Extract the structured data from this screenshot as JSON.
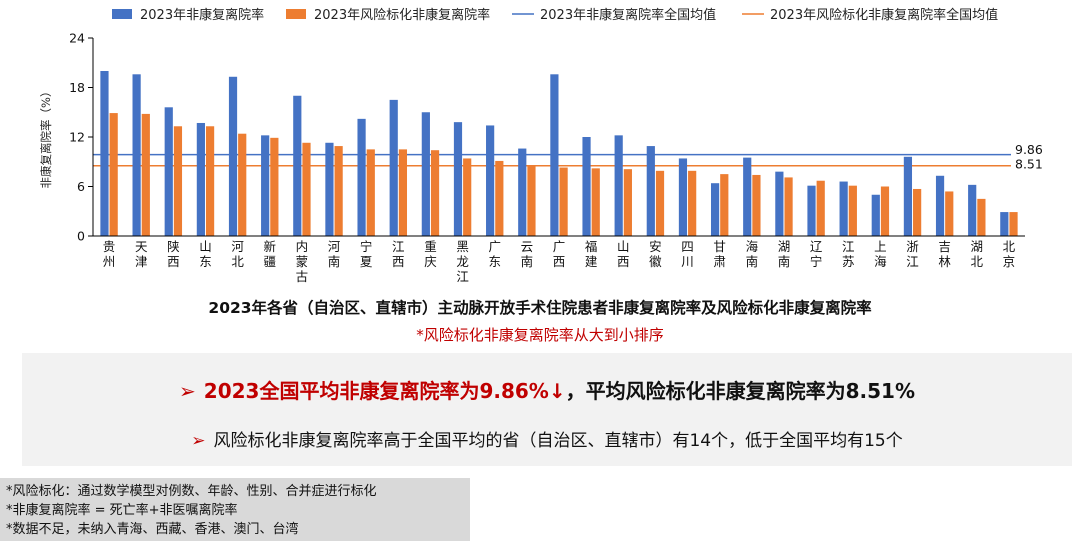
{
  "chart_data": {
    "type": "bar",
    "title": "2023年各省（自治区、直辖市）主动脉开放手术住院患者非康复离院率及风险标化非康复离院率",
    "note": "*风险标化非康复离院率从大到小排序",
    "ylabel": "非康复离院率（%）",
    "ylim": [
      0,
      24
    ],
    "yticks": [
      0,
      6,
      12,
      18,
      24
    ],
    "categories": [
      "贵州",
      "天津",
      "陕西",
      "山东",
      "河北",
      "新疆",
      "内蒙古",
      "河南",
      "宁夏",
      "江西",
      "重庆",
      "黑龙江",
      "广东",
      "云南",
      "广西",
      "福建",
      "山西",
      "安徽",
      "四川",
      "甘肃",
      "海南",
      "湖南",
      "辽宁",
      "江苏",
      "上海",
      "浙江",
      "吉林",
      "湖北",
      "北京"
    ],
    "series": [
      {
        "name": "2023年非康复离院率",
        "color": "#4472c4",
        "values": [
          20.0,
          19.6,
          15.6,
          13.7,
          19.3,
          12.2,
          17.0,
          11.3,
          14.2,
          16.5,
          15.0,
          13.8,
          13.4,
          10.6,
          19.6,
          12.0,
          12.2,
          10.9,
          9.4,
          6.4,
          9.5,
          7.8,
          6.1,
          6.6,
          5.0,
          9.6,
          7.3,
          6.2,
          2.9
        ]
      },
      {
        "name": "2023年风险标化非康复离院率",
        "color": "#ed7d31",
        "values": [
          14.9,
          14.8,
          13.3,
          13.3,
          12.4,
          11.9,
          11.3,
          10.9,
          10.5,
          10.5,
          10.4,
          9.4,
          9.1,
          8.6,
          8.3,
          8.2,
          8.1,
          7.9,
          7.9,
          7.5,
          7.4,
          7.1,
          6.7,
          6.1,
          6.0,
          5.7,
          5.4,
          4.5,
          2.9
        ]
      }
    ],
    "reference_lines": [
      {
        "name": "2023年非康复离院率全国均值",
        "value": 9.86,
        "label": "9.86",
        "color": "#4472c4"
      },
      {
        "name": "2023年风险标化非康复离院率全国均值",
        "value": 8.51,
        "label": "8.51",
        "color": "#ed7d31"
      }
    ],
    "grid": false,
    "legend": "top"
  },
  "summary": {
    "arrow": "➢",
    "line1_red": "2023全国平均非康复离院率为9.86%↓",
    "line1_rest": "，平均风险标化非康复离院率为8.51%",
    "line2": "风险标化非康复离院率高于全国平均的省（自治区、直辖市）有14个，低于全国平均有15个"
  },
  "footnotes": [
    "*风险标化：通过数学模型对例数、年龄、性别、合并症进行标化",
    "*非康复离院率 = 死亡率+非医嘱离院率",
    "*数据不足，未纳入青海、西藏、香港、澳门、台湾"
  ]
}
